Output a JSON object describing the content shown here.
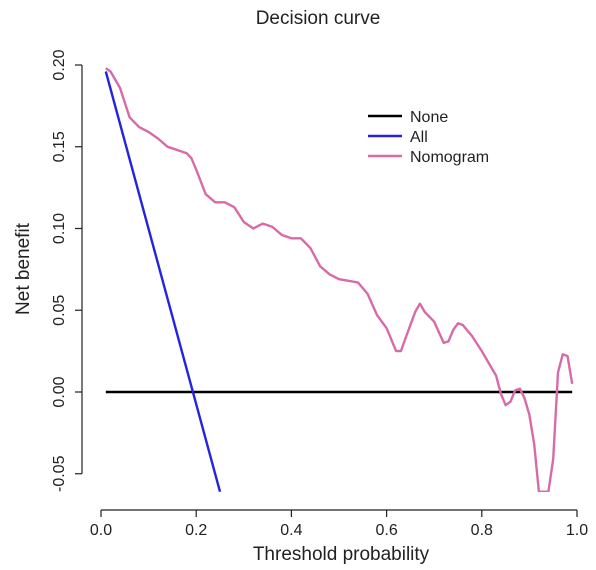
{
  "chart_data": {
    "type": "line",
    "title": "Decision curve",
    "xlabel": "Threshold probability",
    "ylabel": "Net benefit",
    "xlim": [
      0,
      1
    ],
    "ylim": [
      -0.06,
      0.205
    ],
    "x_ticks": [
      0.0,
      0.2,
      0.4,
      0.6,
      0.8,
      1.0
    ],
    "x_tick_labels": [
      "0.0",
      "0.2",
      "0.4",
      "0.6",
      "0.8",
      "1.0"
    ],
    "y_ticks": [
      -0.05,
      0.0,
      0.05,
      0.1,
      0.15,
      0.2
    ],
    "y_tick_labels": [
      "-0.05",
      "0.00",
      "0.05",
      "0.10",
      "0.15",
      "0.20"
    ],
    "grid": false,
    "legend_position": "top-right",
    "series": [
      {
        "name": "None",
        "color": "#000000",
        "x": [
          0.01,
          0.99
        ],
        "y": [
          0.0,
          0.0
        ]
      },
      {
        "name": "All",
        "color": "#2323e0",
        "x": [
          0.01,
          0.25
        ],
        "y": [
          0.196,
          -0.061
        ]
      },
      {
        "name": "Nomogram",
        "color": "#d96aa8",
        "x": [
          0.01,
          0.02,
          0.04,
          0.06,
          0.08,
          0.1,
          0.12,
          0.14,
          0.16,
          0.18,
          0.19,
          0.2,
          0.22,
          0.24,
          0.26,
          0.28,
          0.3,
          0.32,
          0.34,
          0.36,
          0.38,
          0.4,
          0.42,
          0.44,
          0.46,
          0.48,
          0.5,
          0.52,
          0.54,
          0.56,
          0.58,
          0.6,
          0.62,
          0.63,
          0.64,
          0.66,
          0.67,
          0.68,
          0.7,
          0.72,
          0.73,
          0.74,
          0.75,
          0.76,
          0.78,
          0.8,
          0.82,
          0.83,
          0.84,
          0.85,
          0.86,
          0.87,
          0.88,
          0.89,
          0.9,
          0.91,
          0.92,
          0.93,
          0.94,
          0.95,
          0.96,
          0.97,
          0.98,
          0.99
        ],
        "y": [
          0.198,
          0.196,
          0.186,
          0.168,
          0.162,
          0.159,
          0.155,
          0.15,
          0.148,
          0.146,
          0.143,
          0.136,
          0.121,
          0.116,
          0.116,
          0.113,
          0.104,
          0.1,
          0.103,
          0.101,
          0.096,
          0.094,
          0.094,
          0.088,
          0.077,
          0.072,
          0.069,
          0.068,
          0.067,
          0.06,
          0.047,
          0.039,
          0.025,
          0.025,
          0.033,
          0.049,
          0.054,
          0.049,
          0.043,
          0.03,
          0.031,
          0.038,
          0.042,
          0.041,
          0.034,
          0.025,
          0.015,
          0.01,
          -0.001,
          -0.008,
          -0.006,
          0.001,
          0.002,
          -0.004,
          -0.014,
          -0.032,
          -0.061,
          -0.061,
          -0.061,
          -0.041,
          0.012,
          0.023,
          0.022,
          0.005
        ]
      }
    ]
  }
}
